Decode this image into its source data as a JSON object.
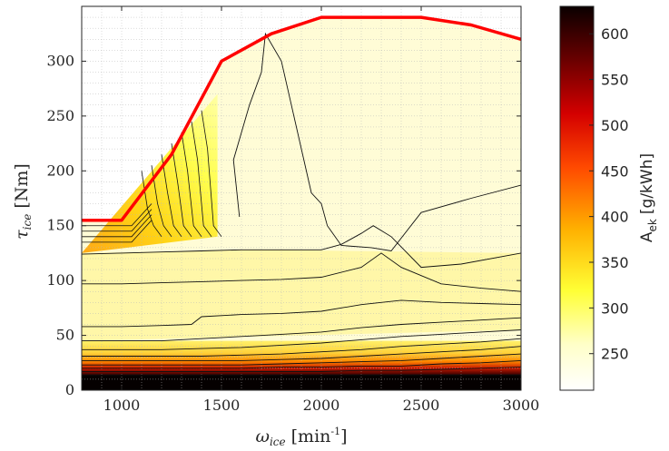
{
  "chart_data": {
    "type": "contour",
    "xlabel": {
      "symbol": "ω",
      "sub": "ice",
      "unit": "[min",
      "unit_sup": "-1",
      "unit_close": "]"
    },
    "ylabel": {
      "symbol": "τ",
      "sub": "ice",
      "unit": "[Nm]"
    },
    "xlim": [
      800,
      3000
    ],
    "ylim": [
      0,
      350
    ],
    "xticks": [
      "1000",
      "1500",
      "2000",
      "2500",
      "3000"
    ],
    "yticks": [
      "0",
      "50",
      "100",
      "150",
      "200",
      "250",
      "300"
    ],
    "grid": "minor-dotted",
    "colorbar": {
      "label_main": "A",
      "label_sub": "ek",
      "label_unit": "[g/kWh]",
      "range": [
        210,
        630
      ],
      "ticks": [
        "250",
        "300",
        "350",
        "400",
        "450",
        "500",
        "550",
        "600"
      ],
      "colormap": "hot-reversed"
    },
    "max_torque_line": {
      "color": "#ff0000",
      "x": [
        800,
        1000,
        1250,
        1500,
        1750,
        2000,
        2250,
        2500,
        2750,
        3000
      ],
      "y": [
        155,
        155,
        215,
        300,
        325,
        340,
        340,
        340,
        333,
        320
      ]
    },
    "contour_lines": [
      {
        "x": [
          800,
          1000,
          1200,
          1400,
          1600,
          1800,
          2000,
          2200,
          2400,
          2600,
          2800,
          3000
        ],
        "y": [
          14,
          14,
          14,
          14,
          14,
          14,
          14,
          14,
          14,
          14,
          14,
          14
        ]
      },
      {
        "x": [
          800,
          1000,
          1200,
          1400,
          1600,
          1800,
          2000,
          2200,
          2400,
          2600,
          2800,
          3000
        ],
        "y": [
          17,
          17,
          17,
          17,
          17,
          17,
          17,
          18,
          18,
          19,
          20,
          21
        ]
      },
      {
        "x": [
          800,
          1000,
          1200,
          1400,
          1600,
          1800,
          2000,
          2200,
          2400,
          2600,
          2800,
          3000
        ],
        "y": [
          20,
          20,
          20,
          20,
          20,
          21,
          21,
          22,
          22,
          24,
          25,
          27
        ]
      },
      {
        "x": [
          800,
          1000,
          1200,
          1400,
          1600,
          1800,
          2000,
          2200,
          2400,
          2600,
          2800,
          3000
        ],
        "y": [
          23,
          23,
          23,
          23,
          23,
          24,
          25,
          26,
          27,
          29,
          31,
          33
        ]
      },
      {
        "x": [
          800,
          1000,
          1200,
          1400,
          1600,
          1800,
          2000,
          2200,
          2400,
          2600,
          2800,
          3000
        ],
        "y": [
          27,
          27,
          27,
          27,
          27,
          28,
          29,
          31,
          33,
          35,
          37,
          40
        ]
      },
      {
        "x": [
          800,
          1000,
          1200,
          1400,
          1600,
          1800,
          2000,
          2200,
          2400,
          2600,
          2800,
          3000
        ],
        "y": [
          31,
          31,
          31,
          31,
          32,
          33,
          35,
          37,
          40,
          42,
          44,
          47
        ]
      },
      {
        "x": [
          800,
          1000,
          1200,
          1400,
          1600,
          1800,
          2000,
          2200,
          2400,
          2600,
          2800,
          3000
        ],
        "y": [
          37,
          37,
          37,
          38,
          39,
          41,
          43,
          46,
          49,
          51,
          53,
          55
        ]
      },
      {
        "x": [
          800,
          1000,
          1200,
          1400,
          1600,
          1800,
          2000,
          2200,
          2400,
          2600,
          2800,
          3000
        ],
        "y": [
          45,
          45,
          45,
          47,
          49,
          51,
          53,
          57,
          60,
          62,
          64,
          66
        ]
      },
      {
        "x": [
          800,
          1000,
          1200,
          1350,
          1400,
          1600,
          1800,
          2000,
          2200,
          2400,
          2600,
          2800,
          3000
        ],
        "y": [
          58,
          58,
          59,
          60,
          67,
          69,
          70,
          72,
          78,
          82,
          80,
          79,
          78
        ]
      },
      {
        "x": [
          800,
          1000,
          1200,
          1400,
          1600,
          1800,
          2000,
          2200,
          2300,
          2400,
          2600,
          2800,
          3000
        ],
        "y": [
          97,
          97,
          98,
          99,
          100,
          101,
          103,
          112,
          125,
          112,
          97,
          93,
          90
        ]
      },
      {
        "x": [
          800,
          1000,
          1200,
          1400,
          1600,
          1700,
          1800,
          2000,
          2100,
          2200,
          2260,
          2350,
          2500,
          2700,
          3000
        ],
        "y": [
          124,
          125,
          126,
          127,
          128,
          128,
          128,
          128,
          133,
          143,
          150,
          140,
          112,
          115,
          125
        ]
      },
      {
        "x": [
          1590,
          1560,
          1640,
          1700,
          1720,
          1800,
          1950,
          2000,
          2030,
          2100,
          2250,
          2350,
          2500,
          2750,
          3000
        ],
        "y": [
          158,
          210,
          260,
          290,
          325,
          300,
          180,
          170,
          150,
          132,
          130,
          127,
          162,
          175,
          187
        ]
      }
    ]
  }
}
